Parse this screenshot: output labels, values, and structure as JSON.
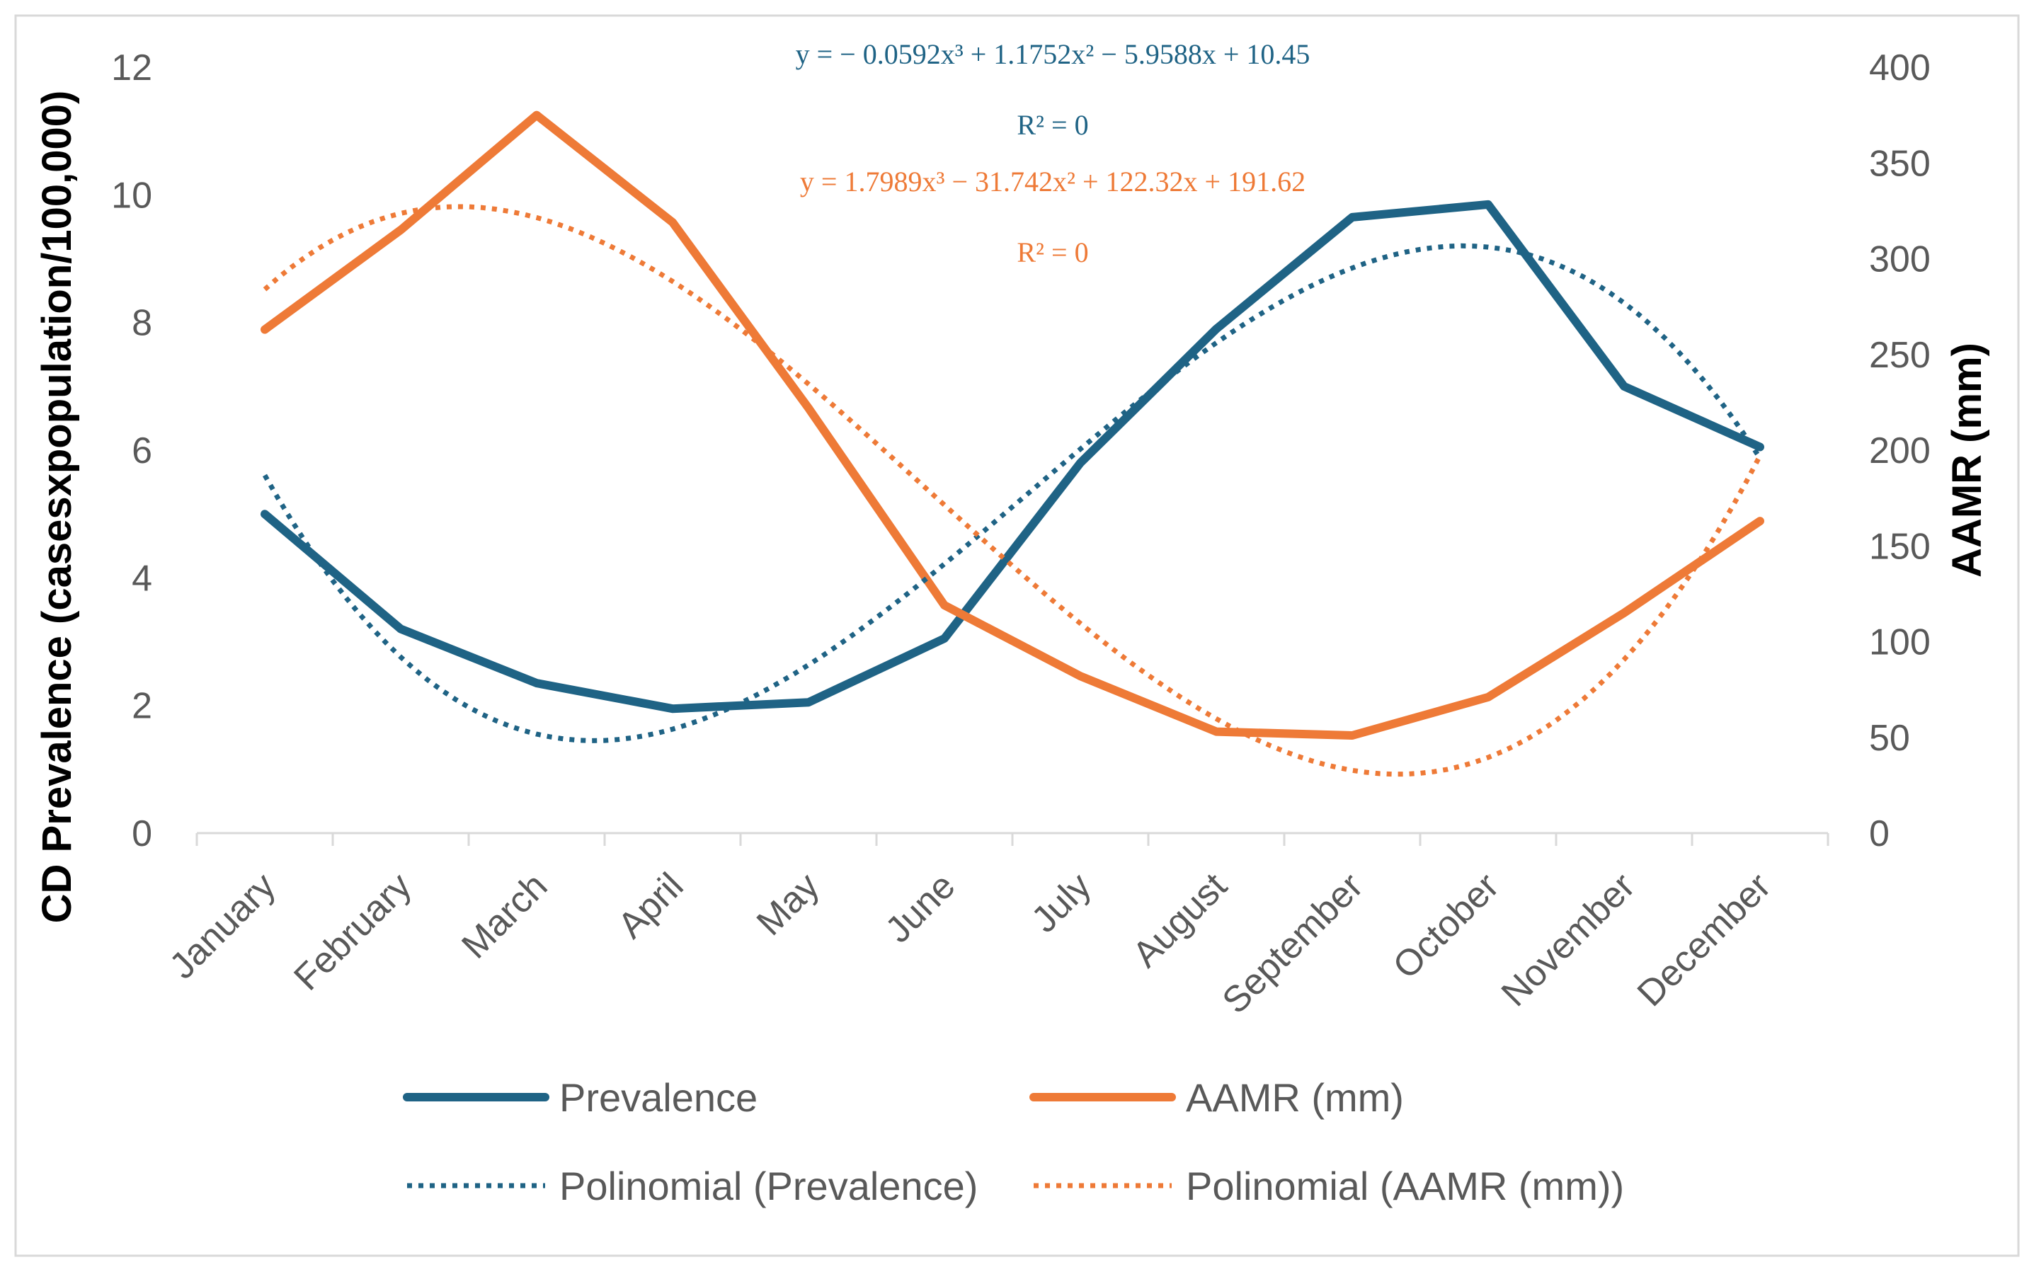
{
  "chart_data": {
    "type": "line",
    "categories": [
      "January",
      "February",
      "March",
      "April",
      "May",
      "June",
      "July",
      "August",
      "September",
      "October",
      "November",
      "December"
    ],
    "series": [
      {
        "name": "Prevalence",
        "axis": "left",
        "style": "solid",
        "color": "#1f6385",
        "values": [
          5.0,
          3.2,
          2.35,
          1.95,
          2.05,
          3.05,
          5.8,
          7.9,
          9.65,
          9.85,
          7.0,
          6.05
        ]
      },
      {
        "name": "AAMR (mm)",
        "axis": "right",
        "style": "solid",
        "color": "#ee7a37",
        "values": [
          263,
          315,
          375,
          319,
          222,
          119,
          82,
          53,
          51,
          71,
          115,
          163
        ]
      },
      {
        "name": "Polinomial (Prevalence)",
        "axis": "left",
        "style": "dotted",
        "color": "#1f6385",
        "trendline_of": "Prevalence",
        "coefficients": [
          -0.0592,
          1.1752,
          -5.9588,
          10.45
        ]
      },
      {
        "name": "Polinomial (AAMR (mm))",
        "axis": "right",
        "style": "dotted",
        "color": "#ee7a37",
        "trendline_of": "AAMR (mm)",
        "coefficients": [
          1.7989,
          -31.742,
          122.32,
          191.62
        ]
      }
    ],
    "y_left": {
      "label": "CD Prevalence (casesxpopulation/100,000)",
      "min": 0,
      "max": 12,
      "ticks": [
        "0",
        "2",
        "4",
        "6",
        "8",
        "10",
        "12"
      ],
      "tick_values": [
        0,
        2,
        4,
        6,
        8,
        10,
        12
      ]
    },
    "y_right": {
      "label": "AAMR (mm)",
      "min": 0,
      "max": 400,
      "ticks": [
        "0",
        "50",
        "100",
        "150",
        "200",
        "250",
        "300",
        "350",
        "400"
      ],
      "tick_values": [
        0,
        50,
        100,
        150,
        200,
        250,
        300,
        350,
        400
      ]
    },
    "annotations": [
      {
        "text": "y = − 0.0592x³ + 1.1752x² − 5.9588x + 10.45",
        "color": "#1f6385"
      },
      {
        "text": "R² = 0",
        "color": "#1f6385"
      },
      {
        "text": "y = 1.7989x³ − 31.742x² + 122.32x + 191.62",
        "color": "#ee7a37"
      },
      {
        "text": "R² = 0",
        "color": "#ee7a37"
      }
    ],
    "legend": {
      "placement": "bottom",
      "entries": [
        "Prevalence",
        "AAMR (mm)",
        "Polinomial (Prevalence)",
        "Polinomial (AAMR (mm))"
      ]
    },
    "grid": false
  }
}
